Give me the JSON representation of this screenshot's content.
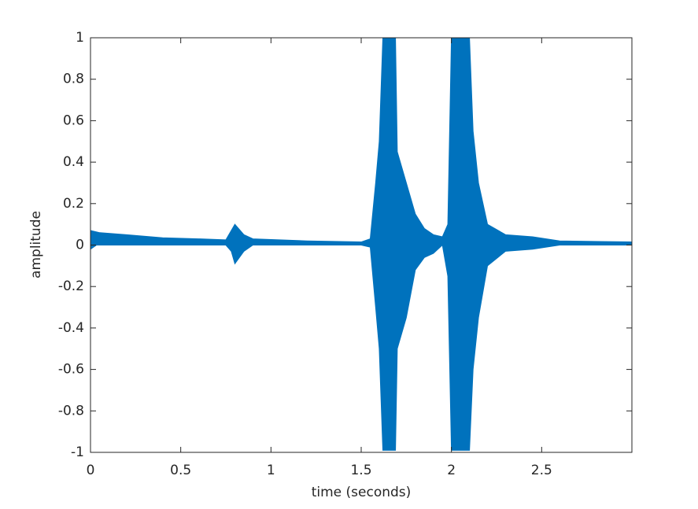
{
  "chart_data": {
    "type": "area",
    "xlabel": "time (seconds)",
    "ylabel": "amplitude",
    "x": [
      0,
      0.05,
      0.2,
      0.4,
      0.6,
      0.75,
      0.78,
      0.8,
      0.85,
      0.9,
      1.2,
      1.5,
      1.55,
      1.58,
      1.6,
      1.62,
      1.69,
      1.7,
      1.75,
      1.8,
      1.85,
      1.9,
      1.95,
      1.98,
      2.0,
      2.1,
      2.12,
      2.15,
      2.2,
      2.3,
      2.45,
      2.6,
      3.0
    ],
    "series": [
      {
        "color": "#0072bd",
        "values": [
          0.07,
          0.06,
          0.05,
          0.035,
          0.03,
          0.025,
          0.07,
          0.1,
          0.05,
          0.03,
          0.02,
          0.015,
          0.03,
          0.3,
          0.5,
          1.0,
          1.0,
          0.45,
          0.3,
          0.15,
          0.08,
          0.05,
          0.04,
          0.1,
          1.0,
          1.0,
          0.55,
          0.3,
          0.1,
          0.05,
          0.04,
          0.02,
          0.015
        ]
      },
      {
        "color": "#0072bd",
        "values": [
          -0.02,
          0.01,
          0.02,
          0.01,
          0.005,
          0.0,
          -0.03,
          -0.09,
          -0.03,
          0.0,
          0.0,
          0.0,
          -0.01,
          -0.3,
          -0.5,
          -0.99,
          -0.99,
          -0.5,
          -0.35,
          -0.12,
          -0.06,
          -0.04,
          0.0,
          -0.15,
          -0.99,
          -0.99,
          -0.6,
          -0.35,
          -0.1,
          -0.03,
          -0.02,
          0.0,
          0.0
        ]
      }
    ],
    "xlim": [
      0,
      3.0
    ],
    "xticks": [
      0,
      0.5,
      1,
      1.5,
      2,
      2.5
    ],
    "ylim": [
      -1,
      1
    ],
    "yticks": [
      -1,
      -0.8,
      -0.6,
      -0.4,
      -0.2,
      0,
      0.2,
      0.4,
      0.6,
      0.8,
      1
    ],
    "grid": false
  }
}
